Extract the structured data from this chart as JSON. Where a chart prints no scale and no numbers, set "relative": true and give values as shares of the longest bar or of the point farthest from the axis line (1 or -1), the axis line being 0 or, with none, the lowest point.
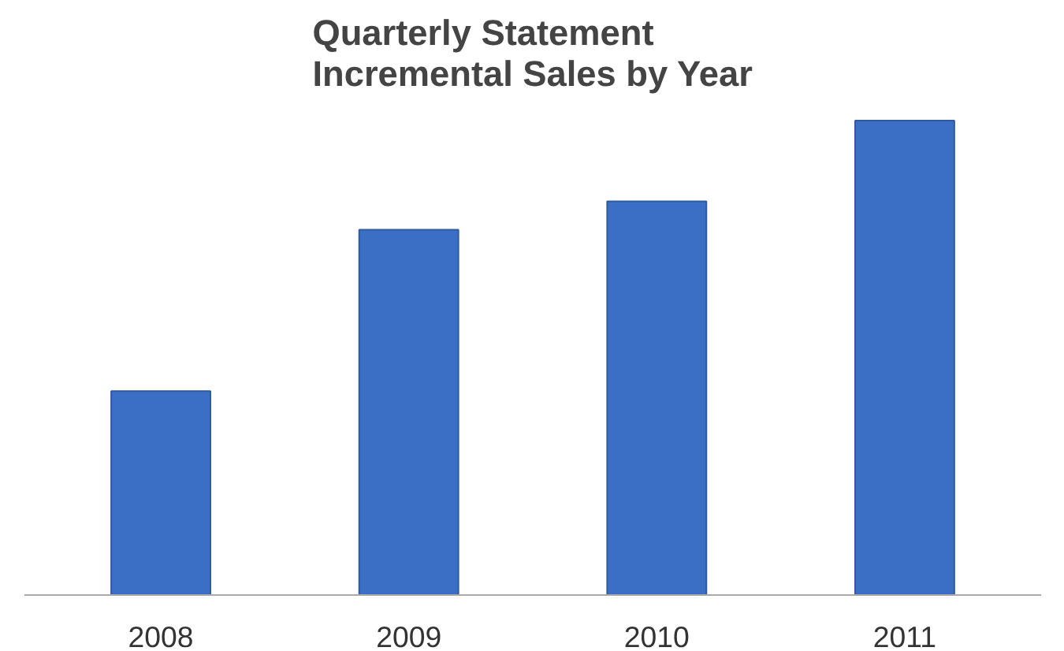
{
  "chart_data": {
    "type": "bar",
    "title": "Quarterly Statement\nIncremental Sales by Year",
    "categories": [
      "2008",
      "2009",
      "2010",
      "2011"
    ],
    "values": [
      0.43,
      0.77,
      0.83,
      1
    ],
    "color": "#3b6fc6",
    "relative": true,
    "grid": false
  }
}
